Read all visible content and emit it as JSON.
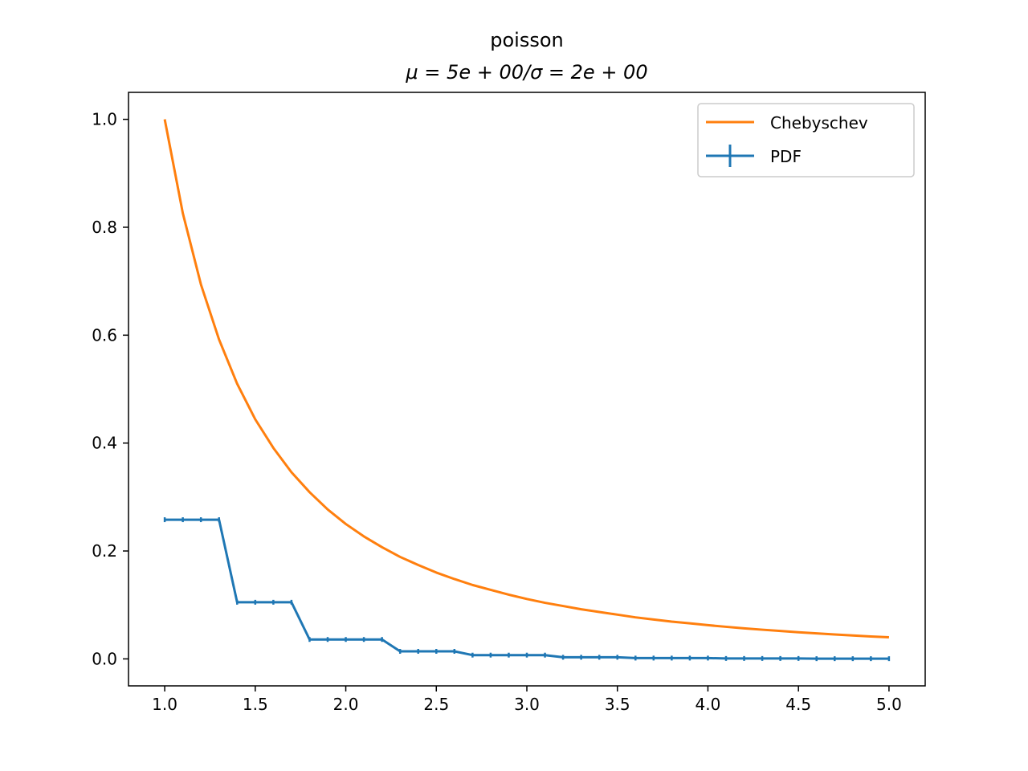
{
  "chart_data": {
    "type": "line",
    "title": "poisson",
    "subtitle": "μ = 5e + 00/σ = 2e + 00",
    "xlabel": "",
    "ylabel": "",
    "xlim": [
      0.8,
      5.2
    ],
    "ylim": [
      -0.05,
      1.05
    ],
    "xticks": [
      1.0,
      1.5,
      2.0,
      2.5,
      3.0,
      3.5,
      4.0,
      4.5,
      5.0
    ],
    "xtick_labels": [
      "1.0",
      "1.5",
      "2.0",
      "2.5",
      "3.0",
      "3.5",
      "4.0",
      "4.5",
      "5.0"
    ],
    "yticks": [
      0.0,
      0.2,
      0.4,
      0.6,
      0.8,
      1.0
    ],
    "ytick_labels": [
      "0.0",
      "0.2",
      "0.4",
      "0.6",
      "0.8",
      "1.0"
    ],
    "grid": false,
    "legend": "upper right",
    "x": [
      1.0,
      1.1,
      1.2,
      1.3,
      1.4,
      1.5,
      1.6,
      1.7,
      1.8,
      1.9,
      2.0,
      2.1,
      2.2,
      2.3,
      2.4,
      2.5,
      2.6,
      2.7,
      2.8,
      2.9,
      3.0,
      3.1,
      3.2,
      3.3,
      3.4,
      3.5,
      3.6,
      3.7,
      3.8,
      3.9,
      4.0,
      4.1,
      4.2,
      4.3,
      4.4,
      4.5,
      4.6,
      4.7,
      4.8,
      4.9,
      5.0
    ],
    "series": [
      {
        "name": "Chebyschev",
        "color": "#ff7f0e",
        "values": [
          1.0,
          0.826,
          0.694,
          0.592,
          0.51,
          0.444,
          0.391,
          0.346,
          0.309,
          0.277,
          0.25,
          0.227,
          0.207,
          0.189,
          0.174,
          0.16,
          0.148,
          0.137,
          0.128,
          0.119,
          0.111,
          0.104,
          0.098,
          0.092,
          0.087,
          0.082,
          0.077,
          0.073,
          0.069,
          0.066,
          0.0625,
          0.0595,
          0.0567,
          0.0541,
          0.0517,
          0.0494,
          0.0473,
          0.0453,
          0.0434,
          0.0416,
          0.04
        ]
      },
      {
        "name": "PDF",
        "color": "#1f77b4",
        "errorbar": true,
        "values": [
          0.258,
          0.258,
          0.258,
          0.258,
          0.105,
          0.105,
          0.105,
          0.105,
          0.036,
          0.036,
          0.036,
          0.036,
          0.036,
          0.014,
          0.014,
          0.014,
          0.014,
          0.007,
          0.007,
          0.007,
          0.007,
          0.007,
          0.003,
          0.003,
          0.003,
          0.003,
          0.0015,
          0.0015,
          0.0015,
          0.0015,
          0.0015,
          0.0008,
          0.0008,
          0.0008,
          0.0008,
          0.0008,
          0.0004,
          0.0004,
          0.0004,
          0.0004,
          0.0004
        ],
        "errors": [
          0.003,
          0.003,
          0.003,
          0.003,
          0.0025,
          0.0025,
          0.0025,
          0.0025,
          0.0015,
          0.0015,
          0.0015,
          0.0015,
          0.0015,
          0.001,
          0.001,
          0.001,
          0.001,
          0.0008,
          0.0008,
          0.0008,
          0.0008,
          0.0008,
          0.0005,
          0.0005,
          0.0005,
          0.0005,
          0.0004,
          0.0004,
          0.0004,
          0.0004,
          0.0004,
          0.0003,
          0.0003,
          0.0003,
          0.0003,
          0.0003,
          0.0002,
          0.0002,
          0.0002,
          0.0002,
          0.0002
        ]
      }
    ]
  }
}
